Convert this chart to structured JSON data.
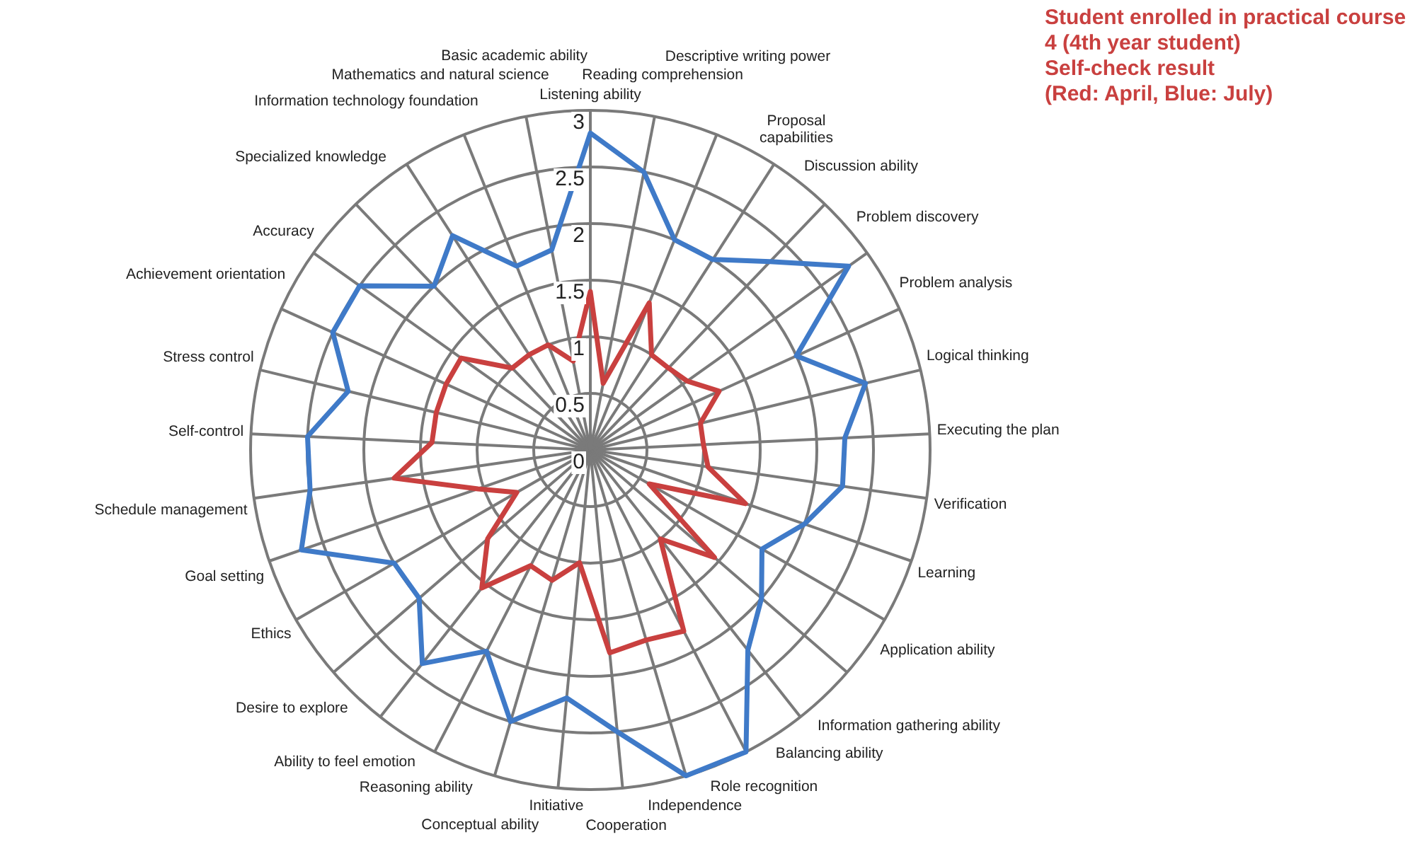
{
  "chart_data": {
    "type": "radar",
    "title": "Student enrolled in practical course\n4 (4th year student)\nSelf-check result\n(Red: April, Blue: July)",
    "categories": [
      "Listening ability",
      "Reading comprehension",
      "Descriptive writing power",
      "Proposal\ncapabilities",
      "Discussion ability",
      "Problem discovery",
      "Problem analysis",
      "Logical thinking",
      "Executing the plan",
      "Verification",
      "Learning",
      "Application ability",
      "Information gathering ability",
      "Balancing ability",
      "Role recognition",
      "Independence",
      "Cooperation",
      "Initiative",
      "Conceptual ability",
      "Reasoning ability",
      "Ability to feel emotion",
      "Desire to explore",
      "Ethics",
      "Goal setting",
      "Schedule management",
      "Self-control",
      "Stress control",
      "Achievement orientation",
      "Accuracy",
      "Specialized knowledge",
      "Information technology foundation",
      "Mathematics and natural science",
      "Basic academic ability"
    ],
    "series": [
      {
        "color": "#c9403f",
        "values": [
          1.4,
          0.6,
          1.4,
          1.0,
          1.0,
          1.05,
          1.25,
          1.0,
          1.0,
          1.05,
          1.45,
          0.6,
          1.45,
          1.0,
          1.8,
          1.75,
          1.8,
          1.0,
          1.2,
          1.15,
          1.55,
          1.2,
          0.75,
          1.05,
          1.75,
          1.4,
          1.4,
          1.4,
          1.4,
          1.0,
          1.0,
          1.0,
          0.8
        ]
      },
      {
        "color": "#3f7ac8",
        "values": [
          2.8,
          2.5,
          2.0,
          2.0,
          2.3,
          2.8,
          2.0,
          2.5,
          2.25,
          2.25,
          2.0,
          1.75,
          2.0,
          2.25,
          3.0,
          3.0,
          2.5,
          2.2,
          2.5,
          2.0,
          2.4,
          2.0,
          2.0,
          2.7,
          2.5,
          2.5,
          2.2,
          2.5,
          2.5,
          2.0,
          2.25,
          1.75,
          1.8
        ]
      }
    ],
    "ylim": [
      0,
      3
    ],
    "yticks": [
      0,
      0.5,
      1,
      1.5,
      2,
      2.5,
      3
    ],
    "grid": true,
    "legend": false,
    "marker": "none",
    "line_style": "solid"
  }
}
